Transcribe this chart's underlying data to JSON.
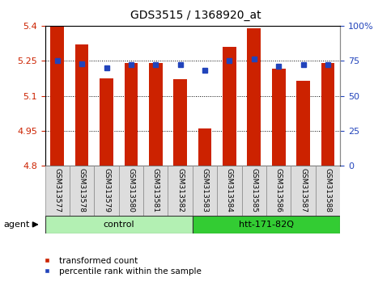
{
  "title": "GDS3515 / 1368920_at",
  "samples": [
    "GSM313577",
    "GSM313578",
    "GSM313579",
    "GSM313580",
    "GSM313581",
    "GSM313582",
    "GSM313583",
    "GSM313584",
    "GSM313585",
    "GSM313586",
    "GSM313587",
    "GSM313588"
  ],
  "transformed_count": [
    5.395,
    5.32,
    5.175,
    5.24,
    5.24,
    5.17,
    4.96,
    5.31,
    5.39,
    5.215,
    5.165,
    5.24
  ],
  "percentile_rank": [
    75,
    73,
    70,
    72,
    72,
    72,
    68,
    75,
    76,
    71,
    72,
    72
  ],
  "groups": [
    {
      "label": "control",
      "start": 0,
      "end": 6,
      "color": "#b3f0b3"
    },
    {
      "label": "htt-171-82Q",
      "start": 6,
      "end": 12,
      "color": "#33cc33"
    }
  ],
  "ylim": [
    4.8,
    5.4
  ],
  "yticks_left": [
    4.8,
    4.95,
    5.1,
    5.25,
    5.4
  ],
  "ytick_labels_left": [
    "4.8",
    "4.95",
    "5.1",
    "5.25",
    "5.4"
  ],
  "yticks_right": [
    0,
    25,
    50,
    75,
    100
  ],
  "ytick_labels_right": [
    "0",
    "25",
    "50",
    "75",
    "100%"
  ],
  "bar_color": "#cc2200",
  "percentile_color": "#2244bb",
  "bar_width": 0.55,
  "grid_linestyle": ":",
  "grid_color": "#000000",
  "background_color": "#ffffff",
  "xticklabel_bg": "#dddddd",
  "agent_label": "agent",
  "legend_entries": [
    "transformed count",
    "percentile rank within the sample"
  ]
}
